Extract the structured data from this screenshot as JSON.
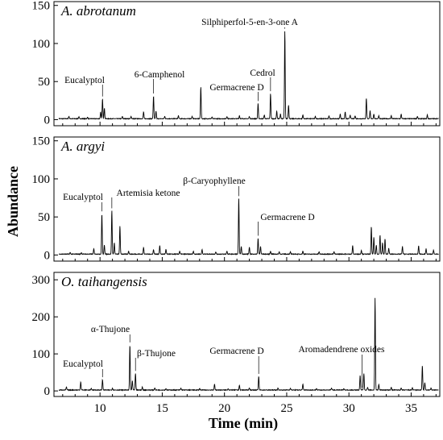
{
  "chart_data": {
    "type": "line",
    "xlabel": "Time (min)",
    "ylabel": "Abundance",
    "xlim": [
      6.3,
      37.3
    ],
    "x_ticks": [
      10,
      15,
      20,
      25,
      30,
      35
    ],
    "panels": [
      {
        "title": "A. abrotanum",
        "ylim": [
          -8,
          155
        ],
        "y_ticks": [
          0,
          50,
          100,
          150
        ],
        "baseline": 1.2,
        "peaks": [
          {
            "x": 7.5,
            "y": 3
          },
          {
            "x": 8.3,
            "y": 2.5
          },
          {
            "x": 9.0,
            "y": 2
          },
          {
            "x": 10.05,
            "y": 9
          },
          {
            "x": 10.2,
            "y": 26
          },
          {
            "x": 10.35,
            "y": 14
          },
          {
            "x": 11.8,
            "y": 3
          },
          {
            "x": 12.5,
            "y": 3
          },
          {
            "x": 13.5,
            "y": 9
          },
          {
            "x": 14.3,
            "y": 30
          },
          {
            "x": 14.5,
            "y": 10
          },
          {
            "x": 15.2,
            "y": 3
          },
          {
            "x": 16.3,
            "y": 4
          },
          {
            "x": 17.4,
            "y": 3
          },
          {
            "x": 18.1,
            "y": 42
          },
          {
            "x": 19.0,
            "y": 2
          },
          {
            "x": 20.2,
            "y": 3
          },
          {
            "x": 21.2,
            "y": 4
          },
          {
            "x": 22.0,
            "y": 3
          },
          {
            "x": 22.7,
            "y": 20
          },
          {
            "x": 23.2,
            "y": 5
          },
          {
            "x": 23.7,
            "y": 33
          },
          {
            "x": 24.2,
            "y": 10
          },
          {
            "x": 24.5,
            "y": 6
          },
          {
            "x": 24.85,
            "y": 115
          },
          {
            "x": 25.15,
            "y": 18
          },
          {
            "x": 26.3,
            "y": 5
          },
          {
            "x": 27.3,
            "y": 3
          },
          {
            "x": 28.4,
            "y": 4
          },
          {
            "x": 29.3,
            "y": 6
          },
          {
            "x": 29.7,
            "y": 9
          },
          {
            "x": 30.1,
            "y": 5
          },
          {
            "x": 30.5,
            "y": 4
          },
          {
            "x": 31.4,
            "y": 27
          },
          {
            "x": 31.7,
            "y": 10
          },
          {
            "x": 32.0,
            "y": 6
          },
          {
            "x": 32.4,
            "y": 4
          },
          {
            "x": 33.4,
            "y": 4
          },
          {
            "x": 34.2,
            "y": 6
          },
          {
            "x": 35.5,
            "y": 3
          },
          {
            "x": 36.3,
            "y": 5
          }
        ],
        "annotations": [
          {
            "text": "Eucalyptol",
            "x": 10.2
          },
          {
            "text": "6-Camphenol",
            "x": 14.3
          },
          {
            "text": "Germacrene D",
            "x": 22.7
          },
          {
            "text": "Cedrol",
            "x": 23.7
          },
          {
            "text": "Silphiperfol-5-en-3-one A",
            "x": 24.85
          }
        ]
      },
      {
        "title": "A. argyi",
        "ylim": [
          -8,
          155
        ],
        "y_ticks": [
          0,
          50,
          100,
          150
        ],
        "baseline": 1.2,
        "peaks": [
          {
            "x": 7.6,
            "y": 2
          },
          {
            "x": 8.5,
            "y": 2
          },
          {
            "x": 9.5,
            "y": 7
          },
          {
            "x": 10.15,
            "y": 53
          },
          {
            "x": 10.35,
            "y": 12
          },
          {
            "x": 10.95,
            "y": 57
          },
          {
            "x": 11.15,
            "y": 15
          },
          {
            "x": 11.6,
            "y": 37
          },
          {
            "x": 12.3,
            "y": 4
          },
          {
            "x": 13.5,
            "y": 9
          },
          {
            "x": 14.3,
            "y": 6
          },
          {
            "x": 14.8,
            "y": 11
          },
          {
            "x": 15.3,
            "y": 6
          },
          {
            "x": 16.4,
            "y": 4
          },
          {
            "x": 17.5,
            "y": 4
          },
          {
            "x": 18.2,
            "y": 6
          },
          {
            "x": 19.3,
            "y": 3
          },
          {
            "x": 20.2,
            "y": 4
          },
          {
            "x": 21.15,
            "y": 73
          },
          {
            "x": 21.35,
            "y": 10
          },
          {
            "x": 22.0,
            "y": 9
          },
          {
            "x": 22.7,
            "y": 21
          },
          {
            "x": 22.9,
            "y": 10
          },
          {
            "x": 23.7,
            "y": 4
          },
          {
            "x": 24.4,
            "y": 3
          },
          {
            "x": 25.3,
            "y": 3
          },
          {
            "x": 26.3,
            "y": 4
          },
          {
            "x": 27.6,
            "y": 3
          },
          {
            "x": 28.8,
            "y": 3
          },
          {
            "x": 30.3,
            "y": 11
          },
          {
            "x": 31.0,
            "y": 5
          },
          {
            "x": 31.8,
            "y": 36
          },
          {
            "x": 32.0,
            "y": 22
          },
          {
            "x": 32.2,
            "y": 12
          },
          {
            "x": 32.5,
            "y": 25
          },
          {
            "x": 32.7,
            "y": 15
          },
          {
            "x": 32.9,
            "y": 20
          },
          {
            "x": 33.2,
            "y": 8
          },
          {
            "x": 34.3,
            "y": 10
          },
          {
            "x": 35.6,
            "y": 11
          },
          {
            "x": 36.2,
            "y": 7
          },
          {
            "x": 36.8,
            "y": 5
          }
        ],
        "annotations": [
          {
            "text": "Eucalyptol",
            "x": 10.15
          },
          {
            "text": "Artemisia ketone",
            "x": 10.95
          },
          {
            "text": "β-Caryophyllene",
            "x": 21.15
          },
          {
            "text": "Germacrene D",
            "x": 22.7
          }
        ]
      },
      {
        "title": "O. taihangensis",
        "ylim": [
          -15,
          320
        ],
        "y_ticks": [
          0,
          100,
          200,
          300
        ],
        "baseline": 2.5,
        "peaks": [
          {
            "x": 7.3,
            "y": 8
          },
          {
            "x": 8.45,
            "y": 22
          },
          {
            "x": 9.3,
            "y": 4
          },
          {
            "x": 10.2,
            "y": 28
          },
          {
            "x": 11.0,
            "y": 5
          },
          {
            "x": 12.4,
            "y": 122
          },
          {
            "x": 12.6,
            "y": 25
          },
          {
            "x": 12.85,
            "y": 45
          },
          {
            "x": 13.4,
            "y": 8
          },
          {
            "x": 14.4,
            "y": 6
          },
          {
            "x": 15.3,
            "y": 4
          },
          {
            "x": 16.5,
            "y": 5
          },
          {
            "x": 18.0,
            "y": 4
          },
          {
            "x": 19.2,
            "y": 16
          },
          {
            "x": 20.3,
            "y": 4
          },
          {
            "x": 21.2,
            "y": 13
          },
          {
            "x": 22.0,
            "y": 6
          },
          {
            "x": 22.75,
            "y": 37
          },
          {
            "x": 24.3,
            "y": 5
          },
          {
            "x": 25.3,
            "y": 5
          },
          {
            "x": 26.3,
            "y": 16
          },
          {
            "x": 27.4,
            "y": 4
          },
          {
            "x": 28.6,
            "y": 5
          },
          {
            "x": 29.6,
            "y": 4
          },
          {
            "x": 30.9,
            "y": 40
          },
          {
            "x": 31.2,
            "y": 45
          },
          {
            "x": 31.5,
            "y": 8
          },
          {
            "x": 32.1,
            "y": 248
          },
          {
            "x": 32.4,
            "y": 15
          },
          {
            "x": 33.4,
            "y": 8
          },
          {
            "x": 34.2,
            "y": 5
          },
          {
            "x": 35.1,
            "y": 6
          },
          {
            "x": 35.9,
            "y": 66
          },
          {
            "x": 36.1,
            "y": 20
          },
          {
            "x": 36.6,
            "y": 5
          }
        ],
        "annotations": [
          {
            "text": "Eucalyptol",
            "x": 10.2
          },
          {
            "text": "α-Thujone",
            "x": 12.4
          },
          {
            "text": "β-Thujone",
            "x": 12.85
          },
          {
            "text": "Germacrene D",
            "x": 22.75
          },
          {
            "text": "Aromadendrene oxides",
            "x": 31.05
          }
        ]
      }
    ]
  }
}
